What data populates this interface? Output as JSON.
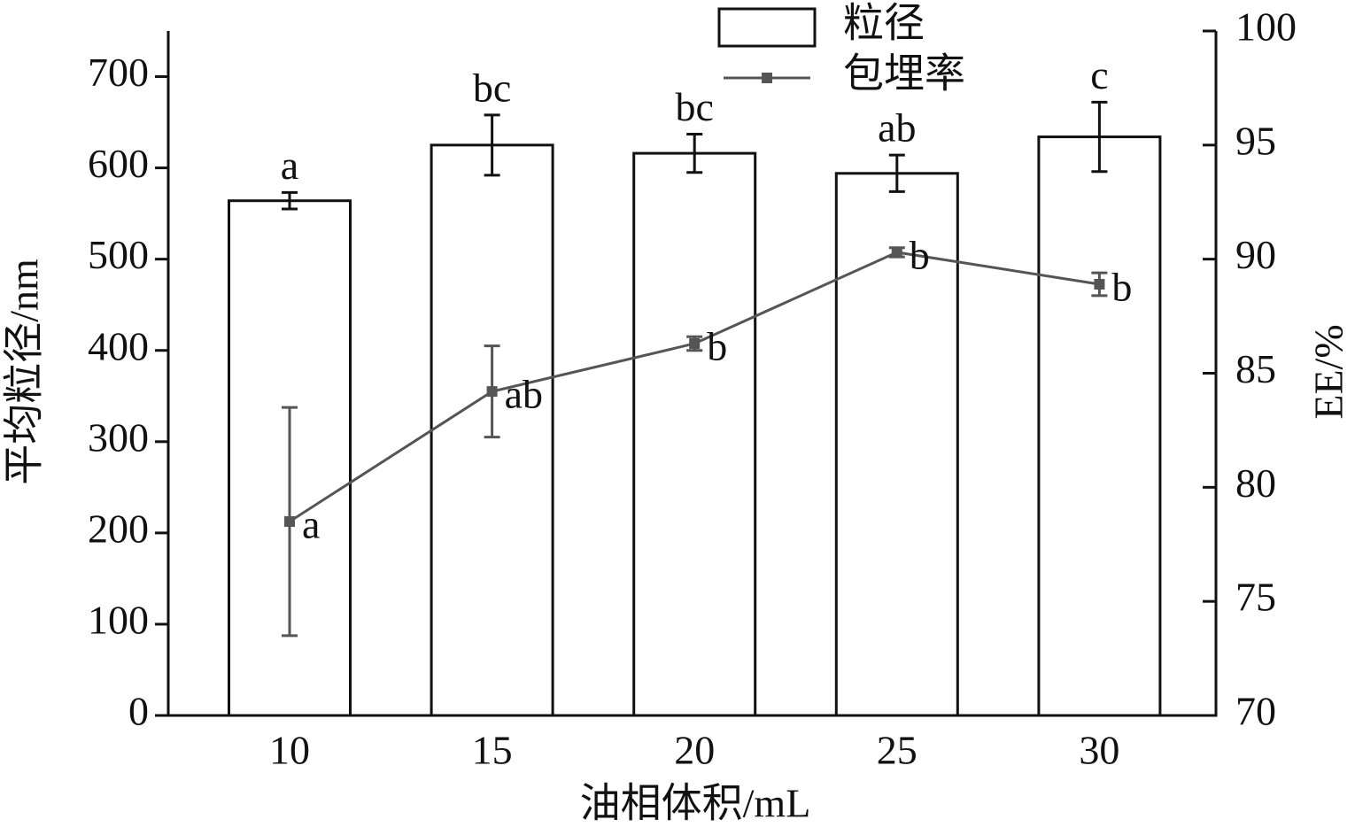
{
  "chart_data": {
    "type": "bar_line",
    "x_label": "油相体积/mL",
    "y_label": "平均粒径/nm",
    "y2_label": "EE/%",
    "categories": [
      "10",
      "15",
      "20",
      "25",
      "30"
    ],
    "ylim": [
      0,
      750
    ],
    "yticks": [
      0,
      100,
      200,
      300,
      400,
      500,
      600,
      700
    ],
    "y2lim": [
      70,
      100
    ],
    "y2ticks": [
      70,
      75,
      80,
      85,
      90,
      95,
      100
    ],
    "legend": "top",
    "series": [
      {
        "name": "粒径",
        "kind": "bar",
        "color": "#ffffff",
        "values": [
          564,
          625,
          616,
          594,
          634
        ],
        "errors": [
          9,
          33,
          21,
          20,
          38
        ],
        "annotations": [
          "a",
          "bc",
          "bc",
          "ab",
          "c"
        ]
      },
      {
        "name": "包埋率",
        "kind": "line",
        "axis": "y2",
        "color": "#555555",
        "values": [
          78.5,
          84.2,
          86.3,
          90.3,
          88.9
        ],
        "errors": [
          5,
          2,
          0.3,
          0.2,
          0.5
        ],
        "annotations": [
          "a",
          "ab",
          "b",
          "b",
          "b"
        ]
      }
    ]
  }
}
